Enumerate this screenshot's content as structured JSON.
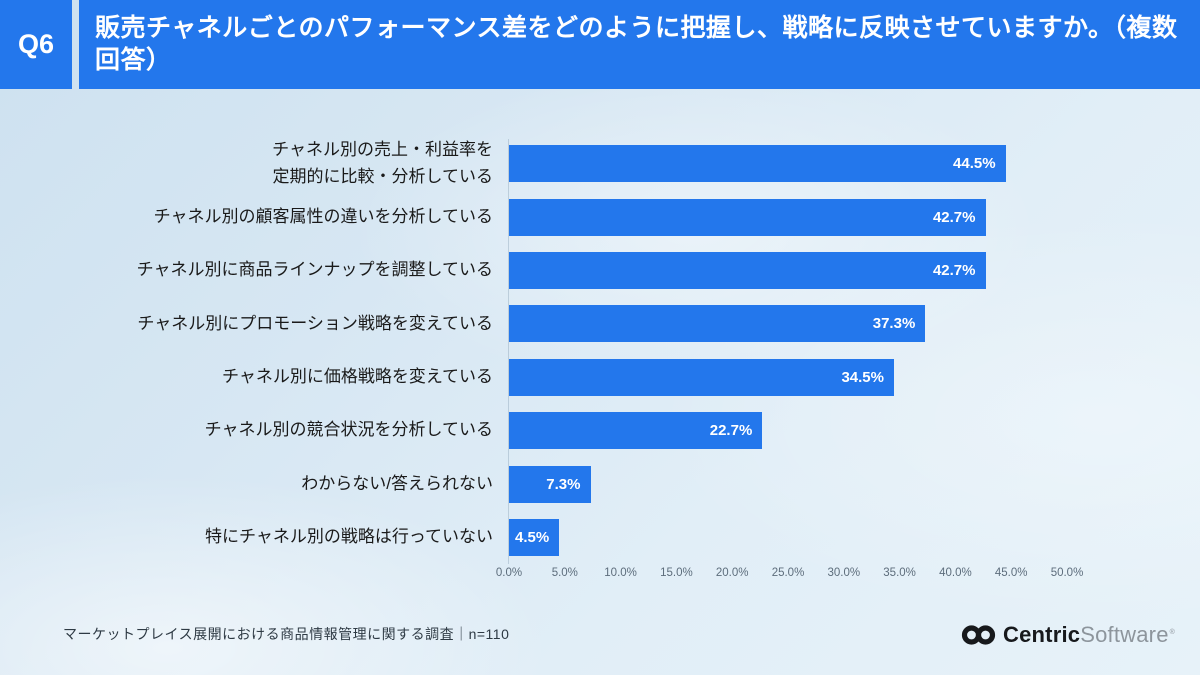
{
  "header": {
    "q_label": "Q6",
    "title": "販売チャネルごとのパフォーマンス差をどのように把握し、戦略に反映させていますか。（複数回答）"
  },
  "chart_data": {
    "type": "bar",
    "orientation": "horizontal",
    "categories": [
      "チャネル別の売上・利益率を\n定期的に比較・分析している",
      "チャネル別の顧客属性の違いを分析している",
      "チャネル別に商品ラインナップを調整している",
      "チャネル別にプロモーション戦略を変えている",
      "チャネル別に価格戦略を変えている",
      "チャネル別の競合状況を分析している",
      "わからない/答えられない",
      "特にチャネル別の戦略は行っていない"
    ],
    "values": [
      44.5,
      42.7,
      42.7,
      37.3,
      34.5,
      22.7,
      7.3,
      4.5
    ],
    "value_labels": [
      "44.5%",
      "42.7%",
      "42.7%",
      "37.3%",
      "34.5%",
      "22.7%",
      "7.3%",
      "4.5%"
    ],
    "xlim": [
      0,
      50
    ],
    "x_ticks": [
      "0.0%",
      "5.0%",
      "10.0%",
      "15.0%",
      "20.0%",
      "25.0%",
      "30.0%",
      "35.0%",
      "40.0%",
      "45.0%",
      "50.0%"
    ],
    "value_label_position": "inside-end",
    "grid": false,
    "legend": "none",
    "bar_color": "#2377EC"
  },
  "footer": {
    "source_note": "マーケットプレイス展開における商品情報管理に関する調査｜n=110",
    "logo": {
      "mark": "interlocked-rings-icon",
      "brand_primary": "Centric",
      "brand_secondary": "Software",
      "registered_mark": "®"
    }
  },
  "colors": {
    "accent_blue": "#2377EC",
    "header_text": "#FFFFFF",
    "background_light_blue": "#DCEAF5",
    "bar_value_text": "#FFFFFF",
    "axis_tick_text": "#5D6D7C",
    "category_text": "#1A1A1A",
    "source_text": "#2E3A44",
    "logo_primary": "#17191C",
    "logo_secondary": "#8D959C"
  }
}
